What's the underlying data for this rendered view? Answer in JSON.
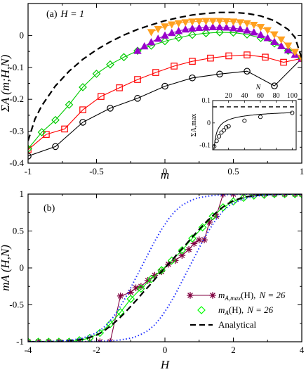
{
  "chart_data": [
    {
      "type": "line",
      "panel_label": "(a)",
      "annotation": "H = 1",
      "xlabel": "m",
      "ylabel": "ΣA (m;H,N)",
      "xlim": [
        -1,
        1
      ],
      "ylim": [
        -0.4,
        0.1
      ],
      "xticks": [
        -1,
        -0.5,
        0,
        0.5,
        1
      ],
      "yticks": [
        -0.4,
        -0.3,
        -0.2,
        -0.1,
        0
      ],
      "xtick_labels": [
        "-1",
        "-0.5",
        "0",
        "0.5",
        "1"
      ],
      "ytick_labels": [
        "-0.4",
        "-0.3",
        "-0.2",
        "-0.1",
        "0"
      ],
      "series": [
        {
          "color": "#000000",
          "marker": "circle",
          "dash": "none",
          "x": [
            -1,
            -0.8,
            -0.6,
            -0.4,
            -0.2,
            0,
            0.2,
            0.4,
            0.6,
            0.8,
            1
          ],
          "y": [
            -0.378,
            -0.348,
            -0.272,
            -0.228,
            -0.197,
            -0.159,
            -0.133,
            -0.121,
            -0.112,
            -0.158,
            -0.072
          ]
        },
        {
          "color": "#ff0000",
          "marker": "square",
          "dash": "none",
          "x": [
            -1,
            -0.867,
            -0.733,
            -0.6,
            -0.467,
            -0.333,
            -0.2,
            -0.067,
            0.067,
            0.2,
            0.333,
            0.467,
            0.6,
            0.733,
            0.867,
            1
          ],
          "y": [
            -0.358,
            -0.31,
            -0.293,
            -0.233,
            -0.191,
            -0.164,
            -0.138,
            -0.116,
            -0.096,
            -0.081,
            -0.071,
            -0.064,
            -0.061,
            -0.068,
            -0.084,
            -0.072
          ]
        },
        {
          "color": "#00cc00",
          "marker": "diamond",
          "dash": "none",
          "x": [
            -1,
            -0.9,
            -0.8,
            -0.7,
            -0.6,
            -0.5,
            -0.4,
            -0.3,
            -0.2,
            -0.1,
            0,
            0.1,
            0.2,
            0.3,
            0.4,
            0.5,
            0.6,
            0.7,
            0.8,
            0.9,
            1
          ],
          "y": [
            -0.355,
            -0.303,
            -0.265,
            -0.217,
            -0.162,
            -0.12,
            -0.091,
            -0.068,
            -0.048,
            -0.032,
            -0.018,
            -0.007,
            0.002,
            0.007,
            0.01,
            0.009,
            0.003,
            -0.008,
            -0.025,
            -0.048,
            -0.072
          ]
        },
        {
          "color": "#9900cc",
          "marker": "triangle-up",
          "dash": "none",
          "x": [
            -0.2,
            -0.15,
            -0.1,
            -0.05,
            0,
            0.05,
            0.1,
            0.15,
            0.2,
            0.25,
            0.3,
            0.35,
            0.4,
            0.45,
            0.5,
            0.55,
            0.6,
            0.65,
            0.7,
            0.75,
            0.8,
            0.85,
            0.9,
            0.95,
            1
          ],
          "y": [
            -0.048,
            -0.034,
            -0.021,
            -0.01,
            0,
            0.008,
            0.014,
            0.019,
            0.022,
            0.024,
            0.025,
            0.026,
            0.026,
            0.025,
            0.023,
            0.02,
            0.016,
            0.01,
            0.002,
            -0.008,
            -0.02,
            -0.033,
            -0.046,
            -0.06,
            -0.072
          ]
        },
        {
          "color": "#ffa020",
          "marker": "triangle-down",
          "dash": "none",
          "x": [
            -0.1,
            -0.05,
            0,
            0.05,
            0.1,
            0.15,
            0.2,
            0.25,
            0.3,
            0.35,
            0.4,
            0.45,
            0.5,
            0.55,
            0.6,
            0.65,
            0.7,
            0.75,
            0.8,
            0.85,
            0.9,
            0.95,
            1
          ],
          "y": [
            0.01,
            0.02,
            0.028,
            0.034,
            0.038,
            0.041,
            0.043,
            0.044,
            0.045,
            0.045,
            0.045,
            0.044,
            0.043,
            0.041,
            0.038,
            0.033,
            0.026,
            0.016,
            0.003,
            -0.013,
            -0.032,
            -0.052,
            -0.072
          ]
        },
        {
          "color": "#000000",
          "marker": "none",
          "dash": "dashed",
          "x": [
            -1,
            -0.95,
            -0.9,
            -0.8,
            -0.7,
            -0.6,
            -0.5,
            -0.4,
            -0.3,
            -0.2,
            -0.1,
            0,
            0.1,
            0.2,
            0.3,
            0.4,
            0.5,
            0.6,
            0.7,
            0.8,
            0.9,
            0.95,
            1
          ],
          "y": [
            -0.33,
            -0.262,
            -0.22,
            -0.158,
            -0.112,
            -0.075,
            -0.045,
            -0.02,
            0.001,
            0.019,
            0.033,
            0.046,
            0.056,
            0.064,
            0.069,
            0.072,
            0.072,
            0.069,
            0.061,
            0.046,
            0.019,
            -0.006,
            -0.072
          ]
        }
      ],
      "inset": {
        "xlabel": "N",
        "ylabel": "ΣA,max",
        "xlim": [
          0,
          105
        ],
        "ylim": [
          -0.12,
          0.1
        ],
        "xticks": [
          20,
          40,
          60,
          80,
          100
        ],
        "xtick_labels": [
          "20",
          "40",
          "60",
          "80",
          "100"
        ],
        "yticks": [
          -0.1,
          0,
          0.1
        ],
        "ytick_labels": [
          "-0.1",
          "0",
          "0.1"
        ],
        "points": {
          "x": [
            2,
            5,
            8,
            11,
            14,
            17,
            20,
            40,
            60,
            100
          ],
          "y": [
            -0.105,
            -0.08,
            -0.06,
            -0.043,
            -0.033,
            -0.02,
            -0.015,
            0.01,
            0.027,
            0.045
          ]
        },
        "asymptote": 0.072
      }
    },
    {
      "type": "line",
      "panel_label": "(b)",
      "xlabel": "H",
      "ylabel": "mA (H,N)",
      "xlim": [
        -4,
        4
      ],
      "ylim": [
        -1,
        1
      ],
      "xticks": [
        -4,
        -2,
        0,
        2,
        4
      ],
      "yticks": [
        -1,
        -0.5,
        0,
        0.5,
        1
      ],
      "xtick_labels": [
        "-4",
        "-2",
        "0",
        "2",
        "4"
      ],
      "ytick_labels": [
        "-1",
        "-0.5",
        "0",
        "0.5",
        "1"
      ],
      "legend_position": "bottom-right",
      "legend": [
        {
          "name_main": "m",
          "name_sub": "A,max",
          "name_arg": "(H),",
          "name_n": "N = 26",
          "color": "#800040",
          "marker": "star",
          "line": "solid"
        },
        {
          "name_main": "m",
          "name_sub": "A",
          "name_arg": "(H),",
          "name_n": "N = 26",
          "color": "#00ff00",
          "marker": "diamond",
          "line": "none"
        },
        {
          "name_main": "Analytical",
          "name_sub": "",
          "name_arg": "",
          "name_n": "",
          "color": "#000000",
          "marker": "none",
          "line": "dashed"
        }
      ],
      "series": [
        {
          "color": "#800040",
          "marker": "star",
          "dash": "none",
          "x": [
            -4,
            -3.7,
            -3.4,
            -3.1,
            -2.8,
            -2.5,
            -2.2,
            -1.9,
            -1.6,
            -1.3,
            -1.0,
            -0.85,
            -0.7,
            -0.5,
            -0.3,
            -0.1,
            0.1,
            0.3,
            0.5,
            0.7,
            0.85,
            1.0,
            1.15,
            1.3,
            1.5,
            1.7,
            2.0,
            2.3,
            2.6,
            2.9,
            3.2,
            3.5,
            3.8,
            4.0
          ],
          "y": [
            -1,
            -1,
            -1,
            -1,
            -1,
            -1,
            -1,
            -1,
            -1,
            -0.38,
            -0.33,
            -0.27,
            -0.25,
            -0.17,
            -0.1,
            -0.05,
            0.05,
            0.1,
            0.17,
            0.25,
            0.33,
            0.38,
            0.38,
            0.62,
            0.7,
            1,
            1,
            1,
            1,
            1,
            1,
            1,
            1,
            1
          ]
        },
        {
          "color": "#00ee00",
          "marker": "diamond",
          "dash": "none",
          "x": [
            -4,
            -3.7,
            -3.4,
            -3.1,
            -2.8,
            -2.5,
            -2.2,
            -1.9,
            -1.6,
            -1.3,
            -1.0,
            -0.7,
            -0.4,
            -0.1,
            0.2,
            0.5,
            0.8,
            1.1,
            1.4,
            1.7,
            2.0,
            2.3,
            2.6,
            2.9,
            3.2,
            3.5,
            3.8,
            4.0
          ],
          "y": [
            -1,
            -1,
            -1,
            -1,
            -1,
            -0.98,
            -0.95,
            -0.88,
            -0.76,
            -0.6,
            -0.42,
            -0.28,
            -0.15,
            -0.03,
            0.1,
            0.24,
            0.4,
            0.55,
            0.7,
            0.82,
            0.9,
            0.95,
            0.98,
            0.99,
            1,
            1,
            1,
            1
          ]
        },
        {
          "color": "#000000",
          "marker": "none",
          "dash": "dashed",
          "x": [
            -4,
            -3.5,
            -3,
            -2.6,
            -2.3,
            -2.0,
            -1.8,
            -1.6,
            -1.4,
            -1.2,
            -1.0,
            -0.8,
            -0.6,
            -0.4,
            -0.2,
            0,
            0.2,
            0.4,
            0.6,
            0.8,
            1.0,
            1.2,
            1.4,
            1.6,
            1.8,
            2.0,
            2.3,
            2.6,
            3,
            3.5,
            4
          ],
          "y": [
            -1,
            -1,
            -0.995,
            -0.98,
            -0.955,
            -0.91,
            -0.86,
            -0.79,
            -0.71,
            -0.62,
            -0.52,
            -0.42,
            -0.31,
            -0.21,
            -0.1,
            0,
            0.1,
            0.21,
            0.31,
            0.42,
            0.52,
            0.62,
            0.71,
            0.79,
            0.86,
            0.91,
            0.955,
            0.98,
            0.995,
            1,
            1
          ]
        },
        {
          "color": "#2030ff",
          "marker": "none",
          "dash": "dotted",
          "x": [
            -4,
            -3.5,
            -3,
            -2.7,
            -2.4,
            -2.1,
            -1.9,
            -1.7,
            -1.5,
            -1.3,
            -1.1,
            -0.9,
            -0.7,
            -0.5,
            -0.3,
            -0.1,
            0,
            0.1,
            0.3,
            0.5,
            0.7,
            0.9,
            1.1,
            1.3,
            1.5,
            1.7,
            1.9,
            2.1,
            2.4,
            2.7,
            3,
            3.5,
            4
          ],
          "y": [
            -1,
            -0.998,
            -0.99,
            -0.975,
            -0.95,
            -0.9,
            -0.85,
            -0.77,
            -0.66,
            -0.52,
            -0.36,
            -0.18,
            0.0,
            0.18,
            0.36,
            0.52,
            0.59,
            0.66,
            0.77,
            0.85,
            0.9,
            0.94,
            0.96,
            0.975,
            0.985,
            0.99,
            0.994,
            0.996,
            0.998,
            1,
            1,
            1,
            1
          ]
        },
        {
          "color": "#2030ff",
          "marker": "none",
          "dash": "dotted",
          "x": [
            -4,
            -3.5,
            -3,
            -2.7,
            -2.4,
            -2.1,
            -1.9,
            -1.7,
            -1.5,
            -1.3,
            -1.1,
            -0.9,
            -0.7,
            -0.5,
            -0.3,
            -0.1,
            0,
            0.1,
            0.3,
            0.5,
            0.7,
            0.9,
            1.1,
            1.3,
            1.5,
            1.7,
            1.9,
            2.1,
            2.4,
            2.7,
            3,
            3.5,
            4
          ],
          "y": [
            -1,
            -1,
            -1,
            -1,
            -0.998,
            -0.996,
            -0.994,
            -0.99,
            -0.985,
            -0.975,
            -0.96,
            -0.94,
            -0.9,
            -0.85,
            -0.77,
            -0.66,
            -0.59,
            -0.52,
            -0.36,
            -0.18,
            0.0,
            0.18,
            0.36,
            0.52,
            0.66,
            0.77,
            0.85,
            0.9,
            0.95,
            0.975,
            0.99,
            0.998,
            1
          ]
        }
      ]
    }
  ]
}
